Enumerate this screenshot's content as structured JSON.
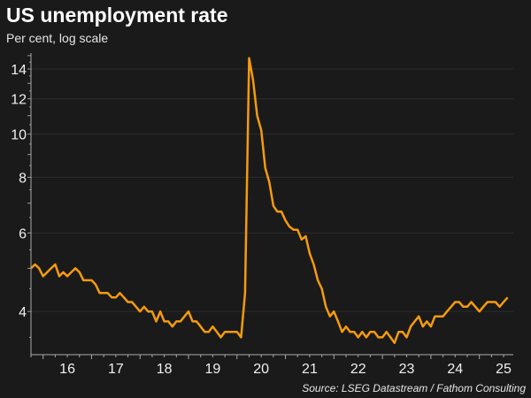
{
  "chart_data": {
    "type": "line",
    "title": "US unemployment rate",
    "subtitle": "Per cent, log scale",
    "source": "Source: LSEG Datastream / Fathom Consulting",
    "xlabel": "",
    "ylabel": "",
    "yscale": "log",
    "ylim": [
      3.2,
      15.2
    ],
    "xlim": [
      2015.75,
      2025.7
    ],
    "y_ticks": [
      4,
      6,
      8,
      10,
      12,
      14
    ],
    "y_tick_labels": [
      "4",
      "6",
      "8",
      "10",
      "12",
      "14"
    ],
    "x_tick_labels": [
      "16",
      "17",
      "18",
      "19",
      "20",
      "21",
      "22",
      "23",
      "24",
      "25"
    ],
    "grid": true,
    "line_color": "#f59b0d",
    "start": "2015-10",
    "frequency": "monthly",
    "series": [
      {
        "name": "US unemployment rate",
        "values": [
          5.0,
          5.1,
          5.0,
          4.8,
          4.9,
          5.0,
          5.1,
          4.8,
          4.9,
          4.8,
          4.9,
          5.0,
          4.9,
          4.7,
          4.7,
          4.7,
          4.6,
          4.4,
          4.4,
          4.4,
          4.3,
          4.3,
          4.4,
          4.3,
          4.2,
          4.2,
          4.1,
          4.0,
          4.1,
          4.0,
          4.0,
          3.8,
          4.0,
          3.8,
          3.8,
          3.7,
          3.8,
          3.8,
          3.9,
          4.0,
          3.8,
          3.8,
          3.7,
          3.6,
          3.6,
          3.7,
          3.6,
          3.5,
          3.6,
          3.6,
          3.6,
          3.6,
          3.5,
          4.4,
          14.8,
          13.2,
          11.0,
          10.2,
          8.4,
          7.8,
          6.9,
          6.7,
          6.7,
          6.4,
          6.2,
          6.1,
          6.1,
          5.8,
          5.9,
          5.4,
          5.1,
          4.7,
          4.5,
          4.1,
          3.9,
          4.0,
          3.8,
          3.6,
          3.7,
          3.6,
          3.6,
          3.5,
          3.6,
          3.5,
          3.6,
          3.6,
          3.5,
          3.5,
          3.6,
          3.5,
          3.4,
          3.6,
          3.6,
          3.5,
          3.7,
          3.8,
          3.9,
          3.7,
          3.8,
          3.7,
          3.9,
          3.9,
          3.9,
          4.0,
          4.1,
          4.2,
          4.2,
          4.1,
          4.1,
          4.2,
          4.1,
          4.0,
          4.1,
          4.2,
          4.2,
          4.2,
          4.1,
          4.2,
          4.3
        ]
      }
    ]
  }
}
